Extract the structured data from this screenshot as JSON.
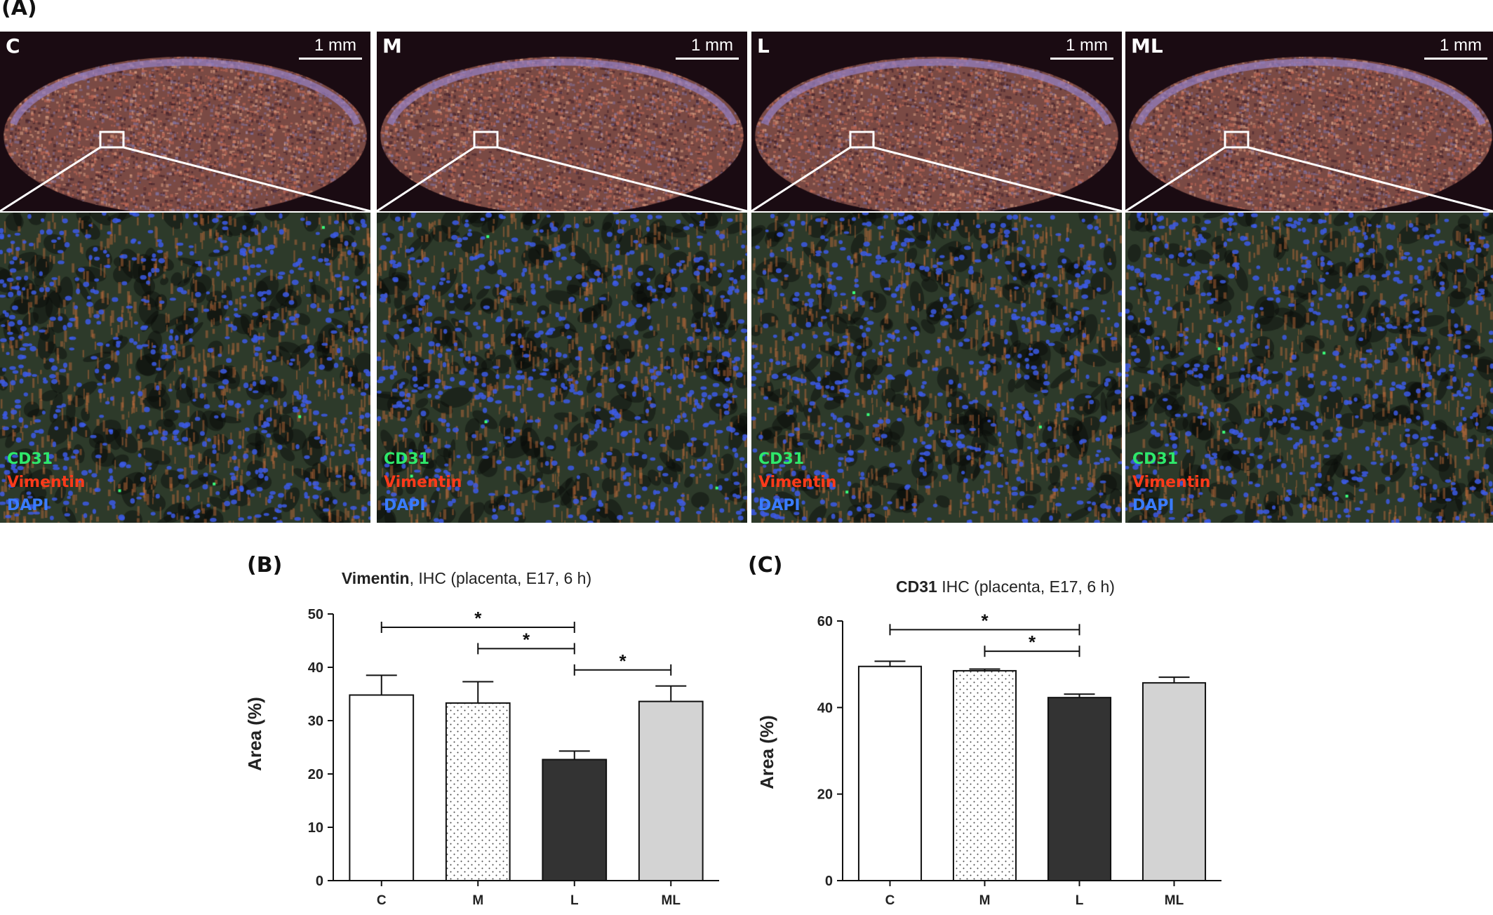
{
  "panel_labels": {
    "a": "(A)",
    "b": "(B)",
    "c": "(C)"
  },
  "micrographs": [
    {
      "condition": "C",
      "scale": "1 mm",
      "legend": [
        "CD31",
        "Vimentin",
        "DAPI"
      ]
    },
    {
      "condition": "M",
      "scale": "1 mm",
      "legend": [
        "CD31",
        "Vimentin",
        "DAPI"
      ]
    },
    {
      "condition": "L",
      "scale": "1 mm",
      "legend": [
        "CD31",
        "Vimentin",
        "DAPI"
      ]
    },
    {
      "condition": "ML",
      "scale": "1 mm",
      "legend": [
        "CD31",
        "Vimentin",
        "DAPI"
      ]
    }
  ],
  "colors": {
    "cd31": "#2ee86a",
    "vimentin": "#ff3a1a",
    "dapi": "#3a7cff"
  },
  "chart_data": [
    {
      "type": "bar",
      "title_bold": "Vimentin",
      "title_rest": ", IHC (placenta, E17, 6 h)",
      "ylabel": "Area (%)",
      "categories": [
        "C",
        "M",
        "L",
        "ML"
      ],
      "values": [
        34.8,
        33.3,
        22.7,
        33.6
      ],
      "errors": [
        3.7,
        4.0,
        1.6,
        2.9
      ],
      "ylim": [
        0,
        50
      ],
      "yticks": [
        0,
        10,
        20,
        30,
        40,
        50
      ],
      "bar_fills": [
        "#ffffff",
        "dots",
        "#333333",
        "#d3d3d3"
      ],
      "significance": [
        {
          "from": 0,
          "to": 2,
          "y": 47.5,
          "label": "*"
        },
        {
          "from": 1,
          "to": 2,
          "y": 43.5,
          "label": "*"
        },
        {
          "from": 2,
          "to": 3,
          "y": 39.5,
          "label": "*"
        }
      ]
    },
    {
      "type": "bar",
      "title_bold": "CD31",
      "title_rest": " IHC (placenta, E17, 6 h)",
      "ylabel": "Area (%)",
      "categories": [
        "C",
        "M",
        "L",
        "ML"
      ],
      "values": [
        49.5,
        48.5,
        42.3,
        45.7
      ],
      "errors": [
        1.2,
        0.4,
        0.8,
        1.3
      ],
      "ylim": [
        0,
        60
      ],
      "yticks": [
        0,
        20,
        40,
        60
      ],
      "bar_fills": [
        "#ffffff",
        "dots",
        "#333333",
        "#d3d3d3"
      ],
      "significance": [
        {
          "from": 0,
          "to": 2,
          "y": 58,
          "label": "*"
        },
        {
          "from": 1,
          "to": 2,
          "y": 53,
          "label": "*"
        }
      ]
    }
  ]
}
